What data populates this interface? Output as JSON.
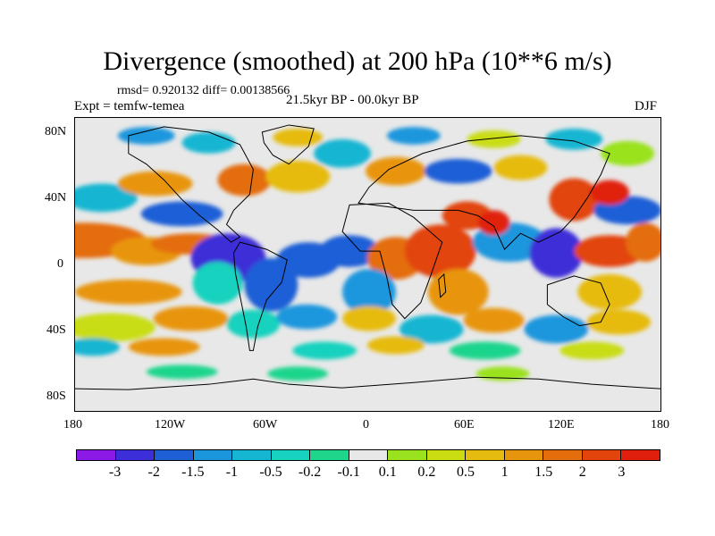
{
  "title": "Divergence (smoothed) at 200 hPa (10**6 m/s)",
  "stats": "rmsd= 0.920132 diff= 0.00138566",
  "experiment": "Expt = temfw-temea",
  "period": "21.5kyr BP - 00.0kyr BP",
  "season": "DJF",
  "y_axis_labels": [
    "80N",
    "40N",
    "0",
    "40S",
    "80S"
  ],
  "x_axis_labels": [
    "180",
    "120W",
    "60W",
    "0",
    "60E",
    "120E",
    "180"
  ],
  "colorbar": {
    "colors": [
      "#8c1ae6",
      "#3c2ed8",
      "#1f5fd6",
      "#1a96dd",
      "#14b6d2",
      "#16d2be",
      "#1ed58c",
      "#e8e8e8",
      "#9ae21e",
      "#c9dd12",
      "#e6bb10",
      "#e8950e",
      "#e46d0c",
      "#e2440b",
      "#e0200c"
    ],
    "labels": [
      "-3",
      "-2",
      "-1.5",
      "-1",
      "-0.5",
      "-0.2",
      "-0.1",
      "0.1",
      "0.2",
      "0.5",
      "1",
      "1.5",
      "2",
      "3"
    ]
  },
  "map_background": "#e8e8e8"
}
